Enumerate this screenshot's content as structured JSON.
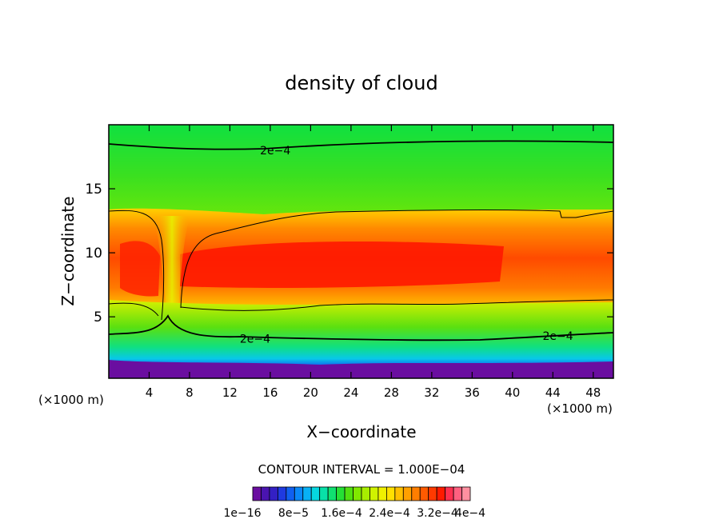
{
  "chart_data": {
    "type": "heatmap",
    "title": "density of cloud",
    "xlabel": "X−coordinate",
    "ylabel": "Z−coordinate",
    "x_unit_left": "(×1000 m)",
    "x_unit_right": "(×1000 m)",
    "xlim": [
      0,
      50
    ],
    "ylim": [
      0.2,
      20
    ],
    "x_ticks": [
      4,
      8,
      12,
      16,
      20,
      24,
      28,
      32,
      36,
      40,
      44,
      48
    ],
    "y_ticks": [
      5,
      10,
      15
    ],
    "contour_interval_text": "CONTOUR INTERVAL = 1.000E−04",
    "contour_labels": [
      {
        "text": "2e−4",
        "x": 16.5,
        "y": 18.0
      },
      {
        "text": "2e−4",
        "x": 14.5,
        "y": 3.3
      },
      {
        "text": "2e−4",
        "x": 44.5,
        "y": 3.5
      }
    ],
    "colorbar": {
      "tick_labels": [
        "1e−16",
        "8e−5",
        "1.6e−4",
        "2.4e−4",
        "3.2e−4",
        "4e−4"
      ],
      "colors": [
        "#6a0ea0",
        "#4a14b0",
        "#3320c4",
        "#1f3ae0",
        "#1060f0",
        "#0a88f8",
        "#08b0f5",
        "#06d6e0",
        "#08e0a8",
        "#10e070",
        "#25e035",
        "#50e010",
        "#80e800",
        "#a8ee00",
        "#d0f200",
        "#f0f000",
        "#ffe000",
        "#ffc000",
        "#ffa000",
        "#ff7e00",
        "#ff5a00",
        "#ff3a00",
        "#ff1a00",
        "#ff3050",
        "#ff6080",
        "#ff90a0"
      ]
    }
  }
}
